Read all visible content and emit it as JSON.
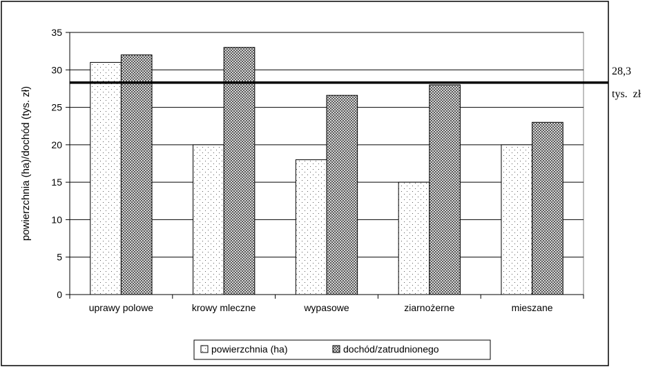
{
  "chart_data": {
    "type": "bar",
    "categories": [
      "uprawy polowe",
      "krowy mleczne",
      "wypasowe",
      "ziarnożerne",
      "mieszane"
    ],
    "series": [
      {
        "name": "powierzchnia (ha)",
        "values": [
          31,
          20,
          18,
          15,
          20
        ],
        "pattern": "dots",
        "color": "#ffffff"
      },
      {
        "name": "dochód/zatrudnionego",
        "values": [
          32,
          33,
          26.6,
          28,
          23
        ],
        "pattern": "checker",
        "color": "#808080"
      }
    ],
    "ylabel": "powierzchnia  (ha)/dochód  (tys.  zł)",
    "xlabel": "",
    "ylim": [
      0,
      35
    ],
    "yticks": [
      0,
      5,
      10,
      15,
      20,
      25,
      30,
      35
    ],
    "grid": true,
    "legend_position": "bottom",
    "reference_line": {
      "value": 28.3,
      "label_line1": "28,3",
      "label_line2": "tys.  zł"
    }
  }
}
